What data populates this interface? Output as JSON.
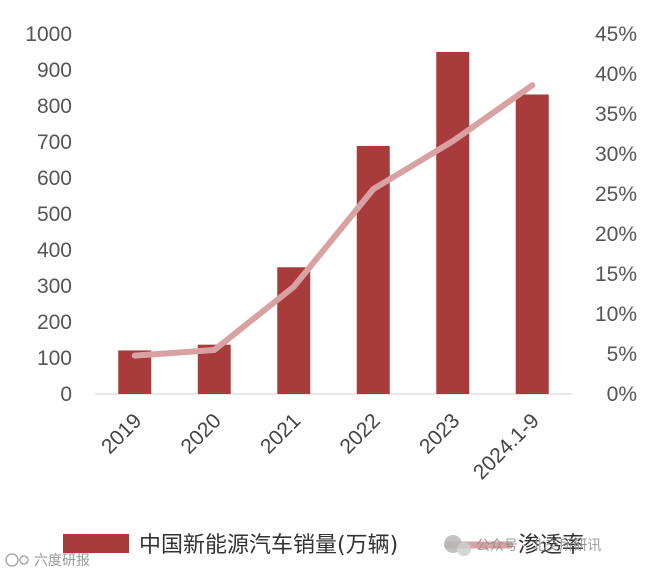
{
  "chart_data": {
    "type": "bar+line",
    "categories": [
      "2019",
      "2020",
      "2021",
      "2022",
      "2023",
      "2024.1-9"
    ],
    "series": [
      {
        "name": "中国新能源汽车销量(万辆)",
        "type": "bar",
        "axis": "left",
        "color": "#A83B3B",
        "values": [
          121,
          137,
          352,
          689,
          950,
          832
        ]
      },
      {
        "name": "渗透率",
        "type": "line",
        "axis": "right",
        "color": "#D9A2A2",
        "values": [
          4.8,
          5.5,
          13.4,
          25.6,
          31.6,
          38.6
        ]
      }
    ],
    "y_left": {
      "min": 0,
      "max": 1000,
      "step": 100,
      "ticks": [
        "0",
        "100",
        "200",
        "300",
        "400",
        "500",
        "600",
        "700",
        "800",
        "900",
        "1000"
      ]
    },
    "y_right": {
      "min": 0,
      "max": 45,
      "step": 5,
      "ticks": [
        "0%",
        "5%",
        "10%",
        "15%",
        "20%",
        "25%",
        "30%",
        "35%",
        "40%",
        "45%"
      ]
    },
    "grid": false,
    "legend_position": "bottom"
  },
  "watermark": {
    "left_text": "六度研报",
    "right_text": "公众号 · 北交所研讯"
  }
}
